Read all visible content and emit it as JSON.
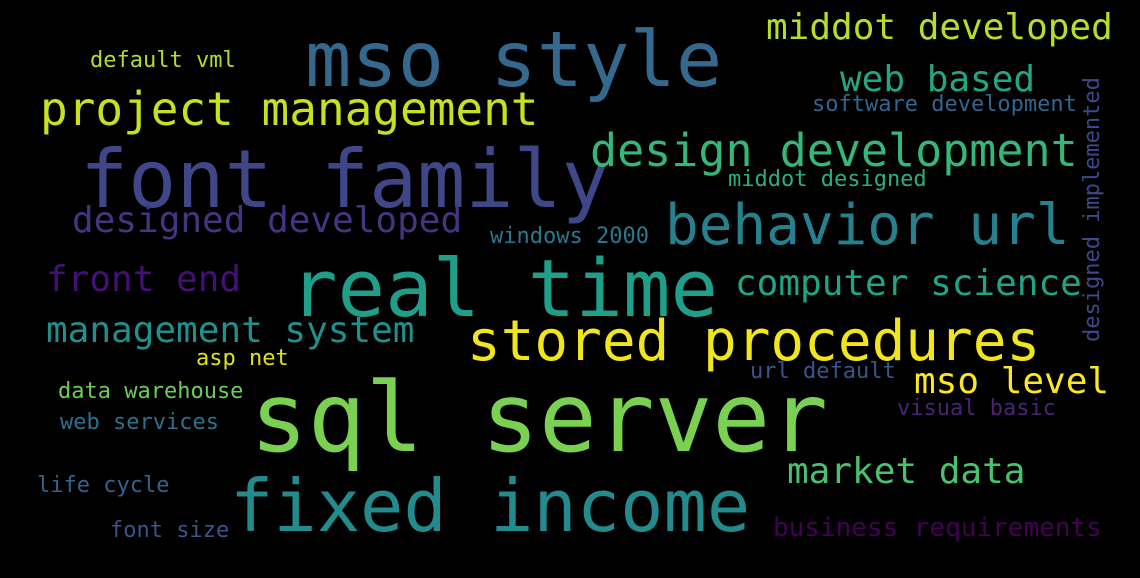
{
  "words": [
    {
      "text": "mso style",
      "color": "#35688d"
    },
    {
      "text": "font family",
      "color": "#3f4788"
    },
    {
      "text": "project management",
      "color": "#c8e020"
    },
    {
      "text": "default vml",
      "color": "#b2dd2c"
    },
    {
      "text": "middot developed",
      "color": "#b5de2b"
    },
    {
      "text": "web based",
      "color": "#22a785"
    },
    {
      "text": "software development",
      "color": "#31668e"
    },
    {
      "text": "design development",
      "color": "#35b779"
    },
    {
      "text": "middot designed",
      "color": "#29af7f"
    },
    {
      "text": "designed developed",
      "color": "#463480"
    },
    {
      "text": "behavior url",
      "color": "#26818e"
    },
    {
      "text": "windows 2000",
      "color": "#2a788e"
    },
    {
      "text": "front end",
      "color": "#440f76"
    },
    {
      "text": "real time",
      "color": "#1f9e89"
    },
    {
      "text": "computer science",
      "color": "#20a486"
    },
    {
      "text": "management system",
      "color": "#218f8d"
    },
    {
      "text": "stored procedures",
      "color": "#f1e51d"
    },
    {
      "text": "asp net",
      "color": "#dde318"
    },
    {
      "text": "url default",
      "color": "#39558c"
    },
    {
      "text": "mso level",
      "color": "#fde725"
    },
    {
      "text": "data warehouse",
      "color": "#6ccd5a"
    },
    {
      "text": "sql server",
      "color": "#7ad151"
    },
    {
      "text": "visual basic",
      "color": "#482475"
    },
    {
      "text": "web services",
      "color": "#2c718e"
    },
    {
      "text": "market data",
      "color": "#4ac16d"
    },
    {
      "text": "life cycle",
      "color": "#33638d"
    },
    {
      "text": "fixed income",
      "color": "#238a8d"
    },
    {
      "text": "font size",
      "color": "#3b528b"
    },
    {
      "text": "business requirements",
      "color": "#440154"
    },
    {
      "text": "designed implemented",
      "color": "#3e4989"
    }
  ]
}
